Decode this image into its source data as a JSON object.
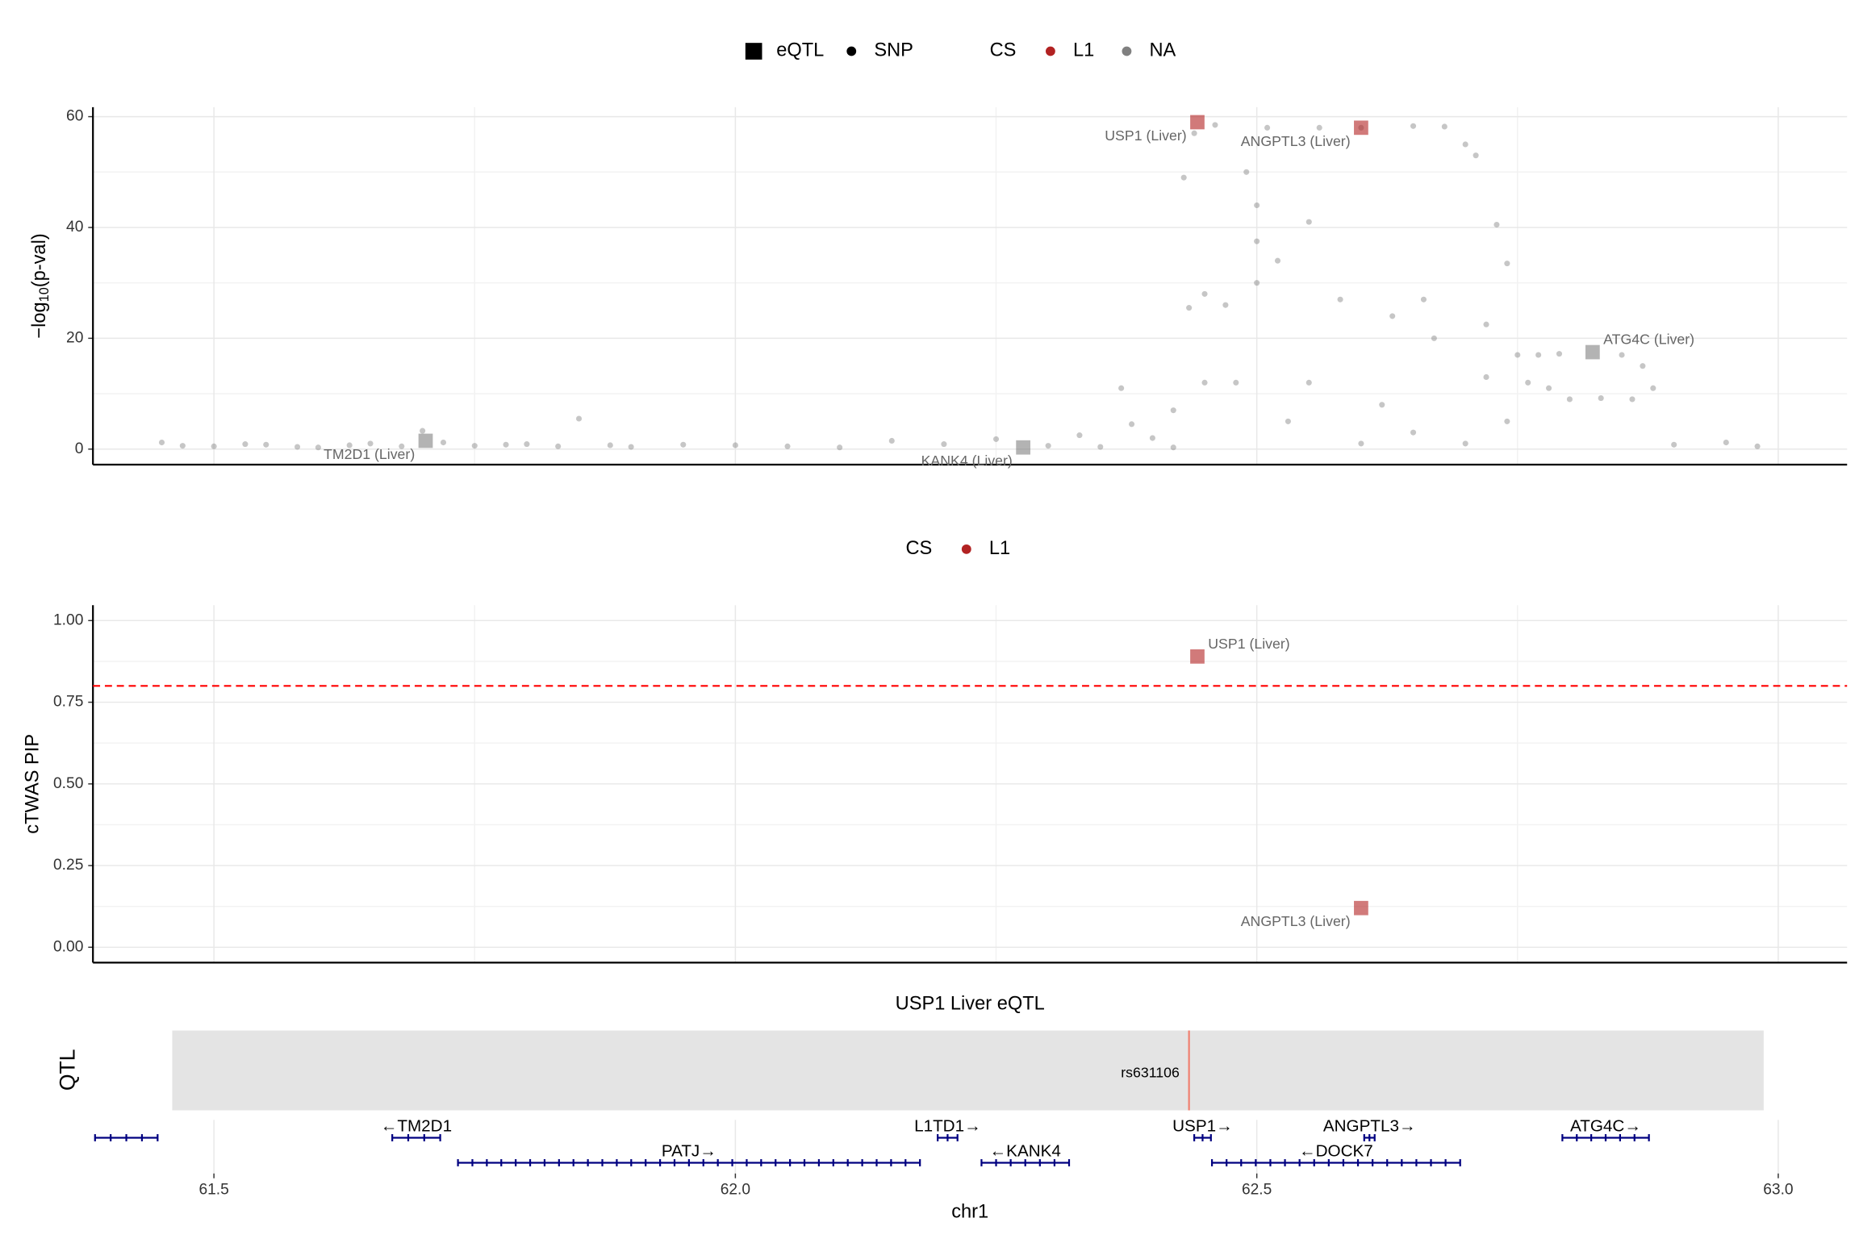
{
  "chart_data": [
    {
      "type": "scatter",
      "ylabel": {
        "main": "−log",
        "sub": "10",
        "tail": "(p-val)"
      },
      "legend": {
        "shapes": [
          {
            "name": "eQTL",
            "shape": "square"
          },
          {
            "name": "SNP",
            "shape": "circle"
          }
        ],
        "title": "CS",
        "entries": [
          {
            "name": "L1",
            "color": "#b22222"
          },
          {
            "name": "NA",
            "color": "#808080"
          }
        ]
      },
      "xlim": [
        61.384,
        63.066
      ],
      "xticks": [
        61.5,
        62.0,
        62.5,
        63.0
      ],
      "xminor": [
        61.75,
        62.25,
        62.75
      ],
      "ylim": [
        -2.8,
        61.7
      ],
      "yticks": [
        0,
        20,
        40,
        60
      ],
      "yminor": [
        10,
        30,
        50
      ],
      "grid": true,
      "snps": {
        "color": "#808080",
        "x": [
          61.45,
          61.47,
          61.5,
          61.53,
          61.55,
          61.58,
          61.6,
          61.63,
          61.65,
          61.68,
          61.7,
          61.72,
          61.75,
          61.78,
          61.8,
          61.83,
          61.85,
          61.88,
          61.9,
          61.95,
          62.0,
          62.05,
          62.1,
          62.15,
          62.2,
          62.25,
          62.3,
          62.33,
          62.35,
          62.37,
          62.38,
          62.4,
          62.42,
          62.43,
          62.435,
          62.44,
          62.45,
          62.46,
          62.47,
          62.48,
          62.49,
          62.5,
          62.5,
          62.5,
          62.51,
          62.52,
          62.53,
          62.55,
          62.56,
          62.58,
          62.6,
          62.62,
          62.63,
          62.65,
          62.66,
          62.67,
          62.68,
          62.7,
          62.71,
          62.72,
          62.72,
          62.73,
          62.74,
          62.74,
          62.75,
          62.77,
          62.79,
          62.76,
          62.78,
          62.8,
          62.83,
          62.86,
          62.88,
          62.87,
          62.85,
          62.9,
          62.95,
          62.98,
          62.6,
          62.7,
          62.65,
          62.55,
          62.45,
          62.42
        ],
        "values": [
          1.2,
          0.6,
          0.5,
          0.9,
          0.8,
          0.4,
          0.3,
          0.7,
          1,
          0.5,
          3.3,
          1.2,
          0.6,
          0.8,
          0.9,
          0.5,
          5.5,
          0.7,
          0.4,
          0.8,
          0.7,
          0.5,
          0.3,
          1.5,
          0.9,
          1.8,
          0.6,
          2.5,
          0.4,
          11,
          4.5,
          2,
          0.3,
          49,
          25.5,
          57,
          28,
          58.5,
          26,
          12,
          50,
          44,
          37.5,
          30,
          58,
          34,
          5,
          41,
          58,
          27,
          58,
          8,
          24,
          58.3,
          27,
          20,
          58.2,
          55,
          53,
          22.5,
          13,
          40.5,
          33.5,
          5,
          17,
          17,
          17.2,
          12,
          11,
          9,
          9.2,
          9,
          11,
          15,
          17,
          0.8,
          1.2,
          0.5,
          1,
          1,
          3,
          12,
          12,
          7
        ]
      },
      "eqtl": {
        "labels": [
          "TM2D1 (Liver)",
          "KANK4 (Liver)",
          "USP1 (Liver)",
          "ANGPTL3 (Liver)",
          "ATG4C (Liver)"
        ],
        "x": [
          61.703,
          62.276,
          62.443,
          62.6,
          62.822
        ],
        "values": [
          1.5,
          0.3,
          59,
          58,
          17.5
        ],
        "colors": [
          "#808080",
          "#808080",
          "#b22222",
          "#b22222",
          "#808080"
        ]
      }
    },
    {
      "type": "scatter",
      "ylabel": "cTWAS PIP",
      "legend": {
        "title": "CS",
        "entries": [
          {
            "name": "L1",
            "color": "#b22222"
          }
        ]
      },
      "xlim": [
        61.384,
        63.066
      ],
      "xticks": [
        61.5,
        62.0,
        62.5,
        63.0
      ],
      "xminor": [
        61.75,
        62.25,
        62.75
      ],
      "ylim": [
        -0.047,
        1.047
      ],
      "yticks": [
        {
          "value": 0,
          "label": "0.00"
        },
        {
          "value": 0.25,
          "label": "0.25"
        },
        {
          "value": 0.5,
          "label": "0.50"
        },
        {
          "value": 0.75,
          "label": "0.75"
        },
        {
          "value": 1,
          "label": "1.00"
        }
      ],
      "yminor": [
        0.125,
        0.375,
        0.625,
        0.875
      ],
      "grid": true,
      "threshold": 0.8,
      "threshold_color": "#ff0000",
      "eqtl": {
        "labels": [
          "USP1 (Liver)",
          "ANGPTL3 (Liver)"
        ],
        "x": [
          62.443,
          62.6
        ],
        "values": [
          0.89,
          0.12
        ],
        "colors": [
          "#b22222",
          "#b22222"
        ]
      }
    },
    {
      "type": "qtl",
      "title": "USP1 Liver eQTL",
      "ylabel": "QTL",
      "xlim": [
        61.384,
        63.066
      ],
      "range": [
        61.46,
        62.986
      ],
      "snp": "rs631106",
      "snp_x": 62.435,
      "snp_color": "#f08070"
    },
    {
      "type": "genes",
      "xlabel": "chr1",
      "xlim": [
        61.384,
        63.066
      ],
      "xticks": [
        61.5,
        {
          "value": 62,
          "label": "62.0"
        },
        62.5,
        {
          "value": 63,
          "label": "63.0"
        }
      ],
      "color": "#000080",
      "genes": [
        {
          "name": null,
          "start": 61.386,
          "end": 61.446
        },
        {
          "name": "←TM2D1",
          "start": 61.671,
          "end": 61.717
        },
        {
          "name": "PATJ→",
          "start": 61.734,
          "end": 62.177
        },
        {
          "name": "L1TD1→",
          "start": 62.194,
          "end": 62.213
        },
        {
          "name": "←KANK4",
          "start": 62.236,
          "end": 62.32
        },
        {
          "name": "USP1→",
          "start": 62.44,
          "end": 62.456
        },
        {
          "name": "←DOCK7",
          "start": 62.457,
          "end": 62.695
        },
        {
          "name": "ANGPTL3→",
          "start": 62.603,
          "end": 62.613
        },
        {
          "name": "ATG4C→",
          "start": 62.793,
          "end": 62.876
        }
      ]
    }
  ]
}
